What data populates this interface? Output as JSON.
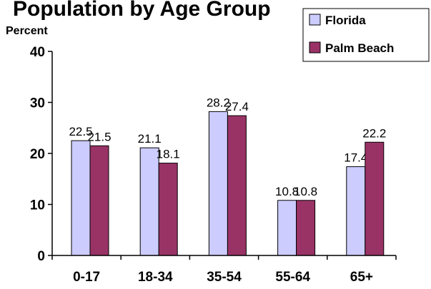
{
  "chart_data": {
    "type": "bar",
    "title": "",
    "title_partial": "Population by Age Group",
    "ylabel": "Percent",
    "xlabel": "",
    "ylim": [
      0,
      40
    ],
    "yticks": [
      0,
      10,
      20,
      30,
      40
    ],
    "categories": [
      "0-17",
      "18-34",
      "35-54",
      "55-64",
      "65+"
    ],
    "series": [
      {
        "name": "Florida",
        "color": "#CCCCFF",
        "values": [
          22.5,
          21.1,
          28.2,
          10.8,
          17.4
        ]
      },
      {
        "name": "Palm Beach",
        "color": "#993366",
        "values": [
          21.5,
          18.1,
          27.4,
          10.8,
          22.2
        ]
      }
    ],
    "data_labels": true,
    "legend_position": "top-right",
    "grid": false
  }
}
